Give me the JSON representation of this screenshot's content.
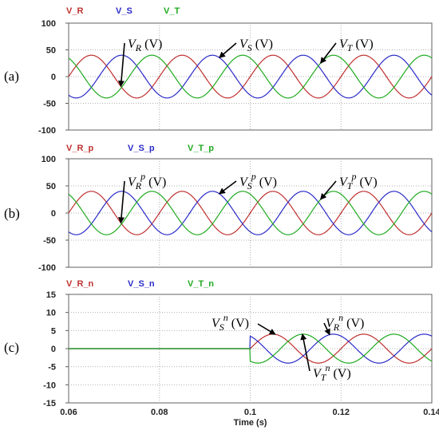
{
  "colors": {
    "R": "#c03030",
    "S": "#2b2bc8",
    "T": "#1faa1f",
    "grid": "#b0b0b0",
    "frame": "#606060"
  },
  "chart_data": [
    {
      "type": "line",
      "panel_label": "(a)",
      "ylim": [
        -100,
        100
      ],
      "yticks": [
        "100",
        "50",
        "0",
        "-50",
        "-100"
      ],
      "xlim": [
        0.06,
        0.14
      ],
      "legend": [
        "V_R",
        "V_S",
        "V_T"
      ],
      "frequency_hz": 50,
      "series": [
        {
          "name": "V_R",
          "amplitude": 40,
          "phase_deg": 0,
          "start": 0.06
        },
        {
          "name": "V_S",
          "amplitude": 40,
          "phase_deg": -120,
          "start": 0.06
        },
        {
          "name": "V_T",
          "amplitude": 40,
          "phase_deg": 120,
          "start": 0.06
        }
      ],
      "annotations": [
        {
          "base": "V",
          "sub": "R",
          "sup": "",
          "unit": " (V)"
        },
        {
          "base": "V",
          "sub": "S",
          "sup": "",
          "unit": " (V)"
        },
        {
          "base": "V",
          "sub": "T",
          "sup": "",
          "unit": " (V)"
        }
      ]
    },
    {
      "type": "line",
      "panel_label": "(b)",
      "ylim": [
        -100,
        100
      ],
      "yticks": [
        "100",
        "50",
        "0",
        "-50",
        "-100"
      ],
      "xlim": [
        0.06,
        0.14
      ],
      "legend": [
        "V_R_p",
        "V_S_p",
        "V_T_p"
      ],
      "frequency_hz": 50,
      "series": [
        {
          "name": "V_R_p",
          "amplitude": 40,
          "phase_deg": 0,
          "start": 0.06
        },
        {
          "name": "V_S_p",
          "amplitude": 40,
          "phase_deg": -120,
          "start": 0.06
        },
        {
          "name": "V_T_p",
          "amplitude": 40,
          "phase_deg": 120,
          "start": 0.06
        }
      ],
      "annotations": [
        {
          "base": "V",
          "sub": "R",
          "sup": "p",
          "unit": " (V)"
        },
        {
          "base": "V",
          "sub": "S",
          "sup": "p",
          "unit": " (V)"
        },
        {
          "base": "V",
          "sub": "T",
          "sup": "p",
          "unit": " (V)"
        }
      ]
    },
    {
      "type": "line",
      "panel_label": "(c)",
      "ylim": [
        -15,
        15
      ],
      "yticks": [
        "15",
        "10",
        "5",
        "0",
        "-5",
        "-10",
        "-15"
      ],
      "xlim": [
        0.06,
        0.14
      ],
      "xticks": [
        "0.06",
        "0.08",
        "0.1",
        "0.12",
        "0.14"
      ],
      "xlabel": "Time (s)",
      "legend": [
        "V_R_n",
        "V_S_n",
        "V_T_n"
      ],
      "frequency_hz": 50,
      "series": [
        {
          "name": "V_R_n",
          "amplitude": 4,
          "phase_deg": 0,
          "start": 0.1
        },
        {
          "name": "V_S_n",
          "amplitude": 4,
          "phase_deg": 120,
          "start": 0.1
        },
        {
          "name": "V_T_n",
          "amplitude": 4,
          "phase_deg": -120,
          "start": 0.1
        }
      ],
      "annotations": [
        {
          "base": "V",
          "sub": "S",
          "sup": "n",
          "unit": " (V)"
        },
        {
          "base": "V",
          "sub": "R",
          "sup": "n",
          "unit": " (V)"
        },
        {
          "base": "V",
          "sub": "T",
          "sup": "n",
          "unit": " (V)"
        }
      ]
    }
  ]
}
